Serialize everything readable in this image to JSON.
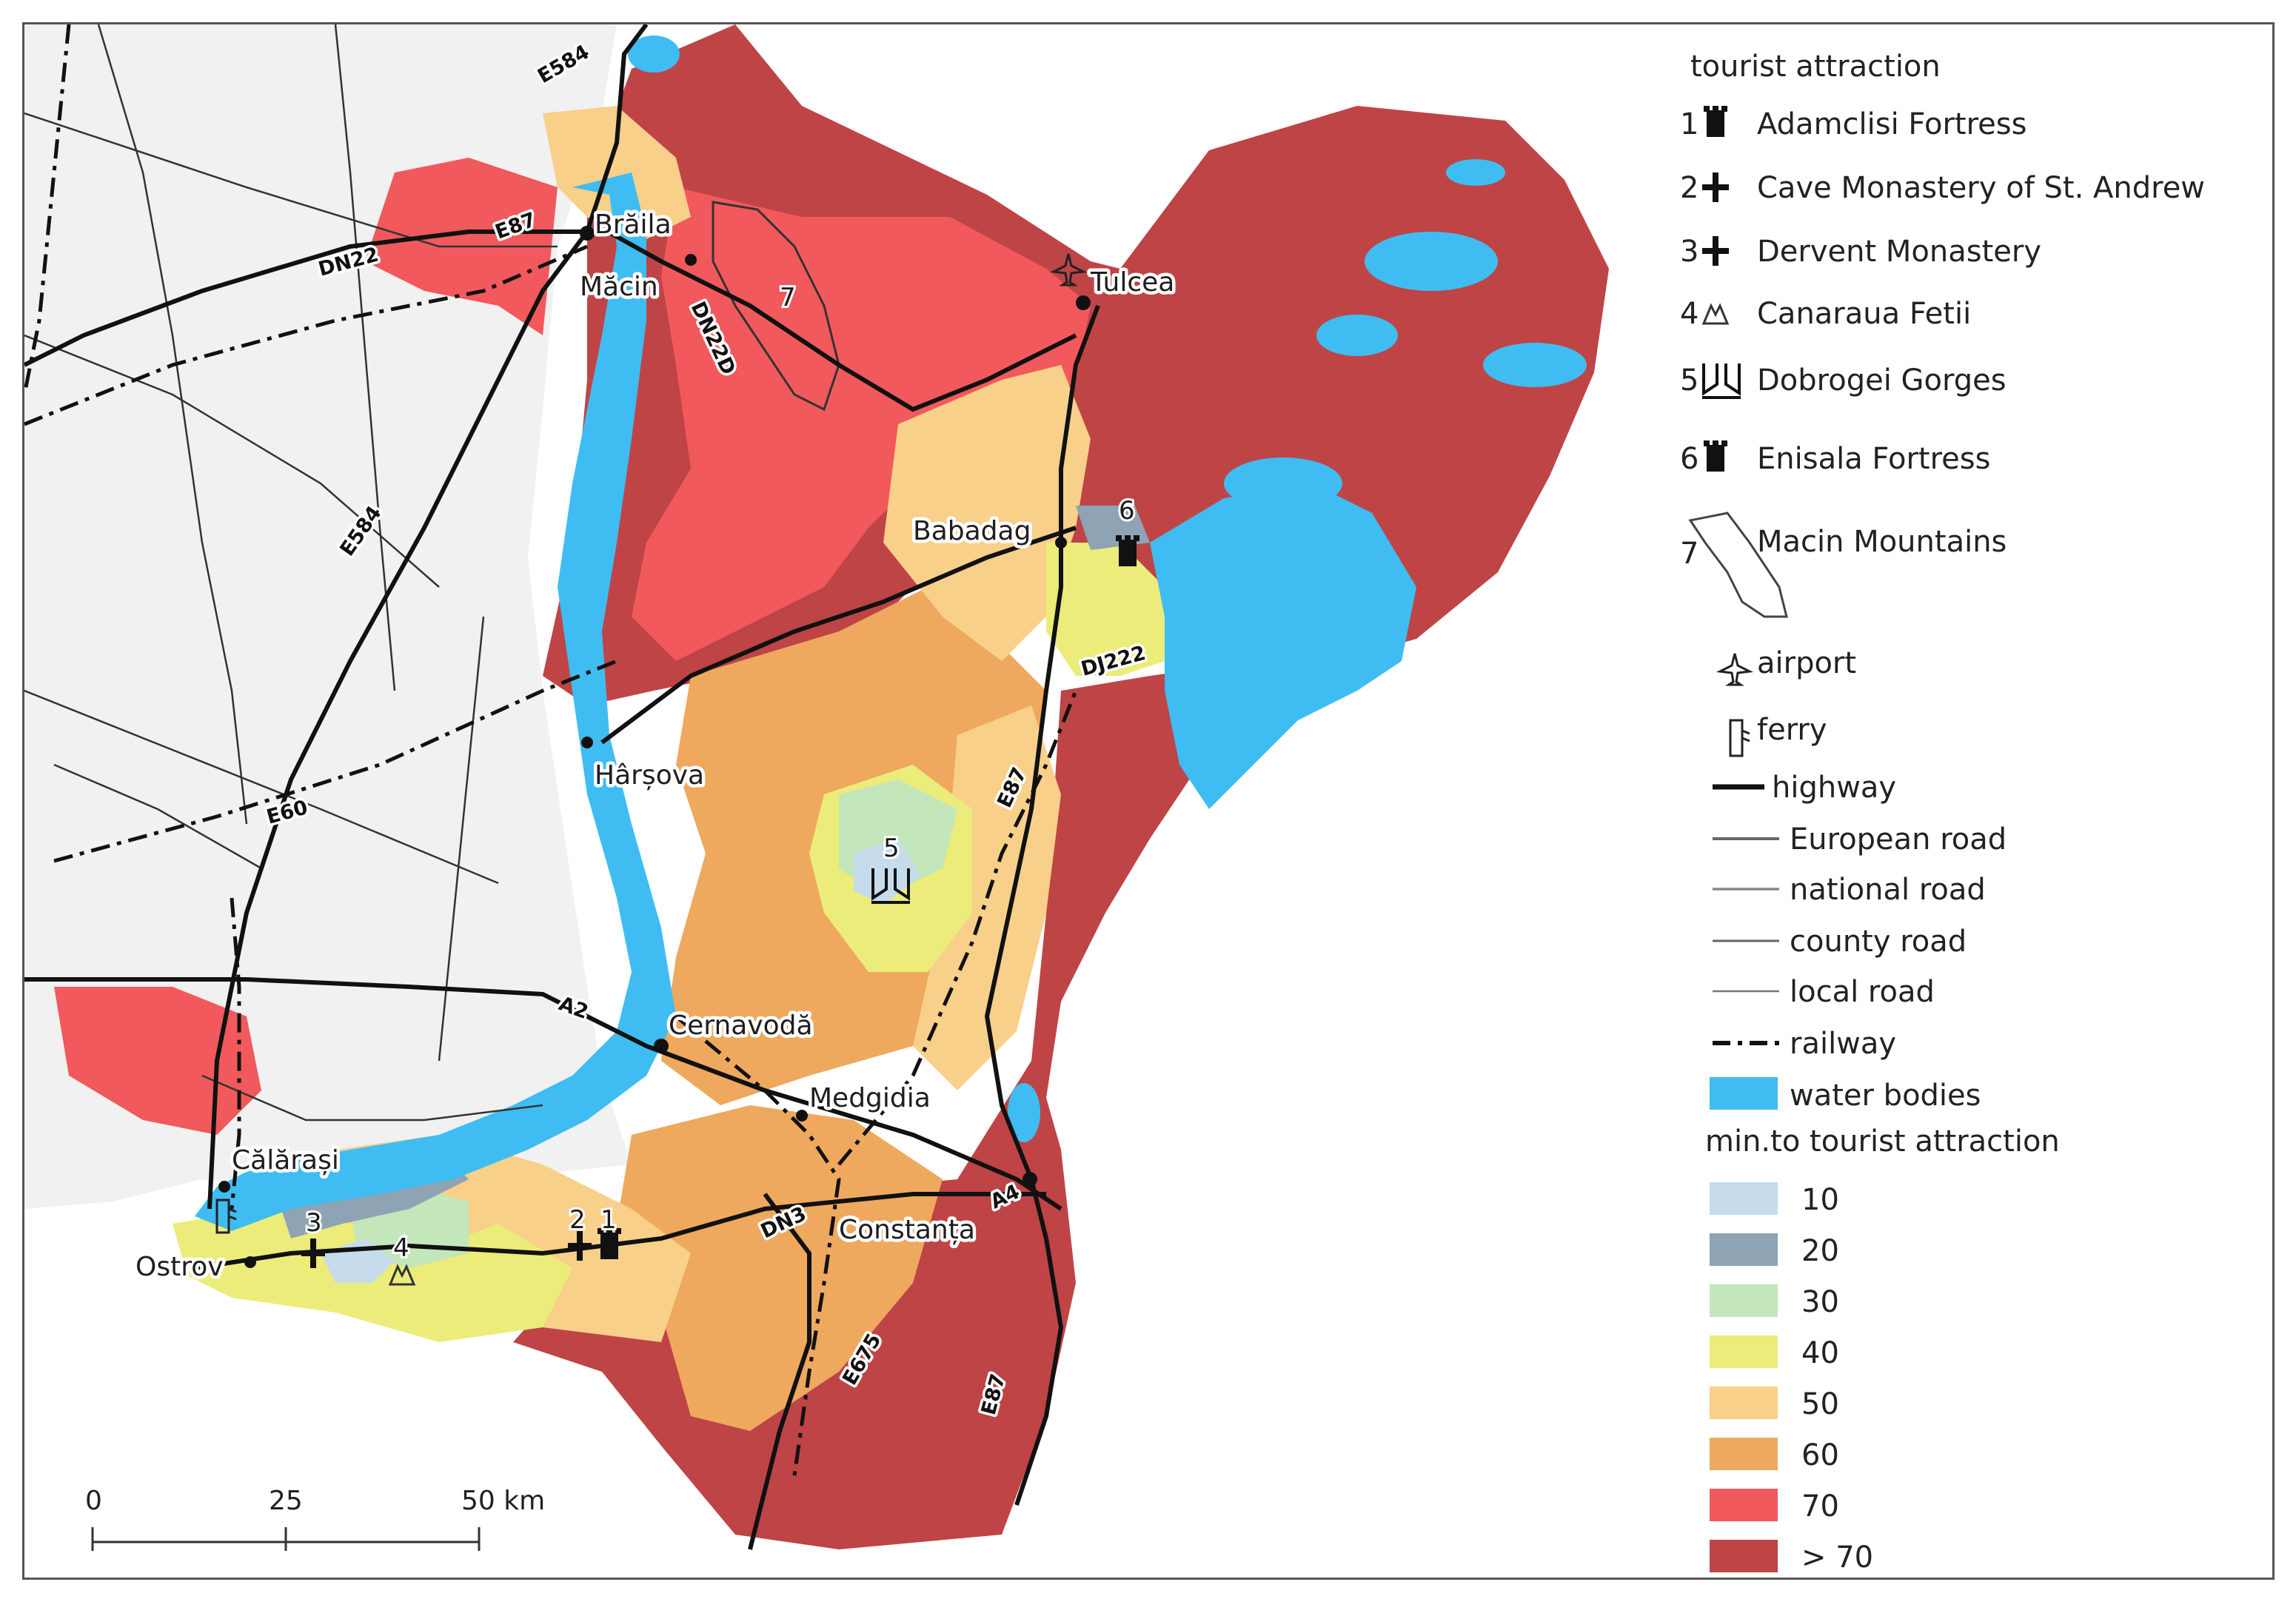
{
  "legend": {
    "attractions_title": "tourist attraction",
    "attractions": [
      {
        "num": "1",
        "label": "Adamclisi Fortress",
        "icon": "fortress-icon"
      },
      {
        "num": "2",
        "label": "Cave Monastery of St. Andrew",
        "icon": "cross-icon"
      },
      {
        "num": "3",
        "label": "Dervent Monastery",
        "icon": "cross-icon"
      },
      {
        "num": "4",
        "label": "Canaraua Fetii",
        "icon": "canyon-icon"
      },
      {
        "num": "5",
        "label": "Dobrogei Gorges",
        "icon": "gorge-icon"
      },
      {
        "num": "6",
        "label": "Enisala Fortress",
        "icon": "fortress-icon"
      },
      {
        "num": "7",
        "label": "Macin Mountains",
        "icon": "mountains-outline-icon"
      }
    ],
    "airport": "airport",
    "ferry": "ferry",
    "lines": [
      {
        "label": "highway"
      },
      {
        "label": "European road"
      },
      {
        "label": "national road"
      },
      {
        "label": "county road"
      },
      {
        "label": "local road"
      },
      {
        "label": "railway"
      }
    ],
    "water": "water bodies",
    "time_title": "min.to tourist attraction",
    "classes": [
      {
        "label": "10",
        "color": "#c6dcec"
      },
      {
        "label": "20",
        "color": "#8ea3b4"
      },
      {
        "label": "30",
        "color": "#c3e6ba"
      },
      {
        "label": "40",
        "color": "#ecec7a"
      },
      {
        "label": "50",
        "color": "#f8d08a"
      },
      {
        "label": "60",
        "color": "#eea95e"
      },
      {
        "label": "70",
        "color": "#f1595c"
      },
      {
        "label": "> 70",
        "color": "#bf4446"
      }
    ],
    "water_color": "#3fbdf2"
  },
  "map": {
    "cities": [
      "Brăila",
      "Măcin",
      "Tulcea",
      "Babadag",
      "Hârșova",
      "Cernavodă",
      "Medgidia",
      "Constanța",
      "Călărași",
      "Ostrov"
    ],
    "roads": [
      "E87",
      "E584",
      "DN22",
      "DN22D",
      "DJ222",
      "E60",
      "A2",
      "DN3",
      "E675",
      "E87",
      "E87",
      "A4",
      "E584"
    ],
    "attraction_numbers": [
      "1",
      "2",
      "3",
      "4",
      "5",
      "6",
      "7"
    ]
  },
  "scale": {
    "ticks": [
      "0",
      "25",
      "50 km"
    ]
  }
}
